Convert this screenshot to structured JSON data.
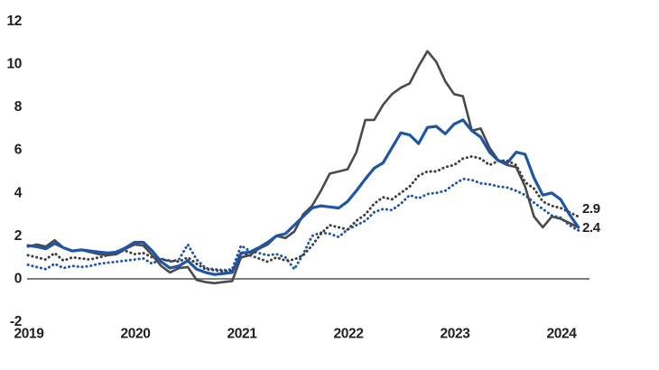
{
  "chart_data": {
    "type": "line",
    "title": "",
    "xlabel": "",
    "ylabel": "",
    "x_unit": "month",
    "x_start": "2019-01",
    "x_end": "2024-03",
    "x_tick_labels": [
      "2019",
      "2020",
      "2021",
      "2022",
      "2023",
      "2024"
    ],
    "y_ticks": [
      -2,
      0,
      2,
      4,
      6,
      8,
      10,
      12
    ],
    "ylim": [
      -2,
      12
    ],
    "grid": false,
    "legend_position": "none",
    "zero_baseline": true,
    "axis_text_color": "#1f1f1f",
    "zero_line_color": "#7d7d7d",
    "series": [
      {
        "name": "dotted-blue",
        "style": "dotted",
        "color": "#1f55a5",
        "values": [
          0.65,
          0.55,
          0.45,
          0.7,
          0.5,
          0.6,
          0.55,
          0.6,
          0.7,
          0.75,
          0.8,
          0.85,
          0.9,
          0.95,
          0.7,
          0.95,
          0.8,
          0.9,
          1.6,
          0.9,
          0.5,
          0.45,
          0.4,
          0.45,
          1.55,
          1.3,
          1.2,
          1.1,
          1.15,
          1.0,
          0.45,
          1.15,
          2.0,
          2.15,
          2.1,
          1.95,
          2.3,
          2.5,
          2.7,
          3.1,
          3.25,
          3.2,
          3.5,
          3.9,
          3.75,
          3.95,
          4.0,
          4.1,
          4.4,
          4.65,
          4.6,
          4.45,
          4.4,
          4.3,
          4.25,
          4.1,
          3.9,
          3.55,
          3.25,
          2.95,
          2.85,
          2.5,
          2.25
        ]
      },
      {
        "name": "dotted-dark-gray",
        "style": "dotted",
        "color": "#3d3d3d",
        "values": [
          1.1,
          1.0,
          0.9,
          1.2,
          0.85,
          1.0,
          0.95,
          0.9,
          1.0,
          1.1,
          1.3,
          1.3,
          1.15,
          1.2,
          1.0,
          0.9,
          0.85,
          0.8,
          1.0,
          0.7,
          0.45,
          0.4,
          0.35,
          0.4,
          1.2,
          1.1,
          0.95,
          0.8,
          1.0,
          0.85,
          0.9,
          1.1,
          1.55,
          2.1,
          2.5,
          2.4,
          2.3,
          2.7,
          3.0,
          3.5,
          3.8,
          3.7,
          4.0,
          4.3,
          4.8,
          5.0,
          5.0,
          5.2,
          5.3,
          5.6,
          5.7,
          5.6,
          5.3,
          5.5,
          5.5,
          5.3,
          4.5,
          4.2,
          3.6,
          3.4,
          3.3,
          3.1,
          2.9
        ]
      },
      {
        "name": "solid-dark-gray",
        "style": "solid",
        "color": "#4a4a4a",
        "values": [
          1.5,
          1.6,
          1.5,
          1.8,
          1.45,
          1.3,
          1.35,
          1.25,
          1.15,
          1.1,
          1.15,
          1.4,
          1.6,
          1.55,
          1.1,
          0.6,
          0.3,
          0.5,
          0.55,
          -0.05,
          -0.15,
          -0.2,
          -0.15,
          -0.1,
          1.0,
          1.1,
          1.4,
          1.6,
          2.0,
          1.9,
          2.2,
          3.0,
          3.4,
          4.1,
          4.9,
          5.0,
          5.1,
          5.9,
          7.4,
          7.4,
          8.1,
          8.6,
          8.9,
          9.1,
          9.9,
          10.6,
          10.1,
          9.2,
          8.6,
          8.5,
          6.9,
          7.0,
          6.1,
          5.5,
          5.3,
          5.2,
          4.3,
          2.9,
          2.4,
          2.9,
          2.8,
          2.6,
          2.4
        ]
      },
      {
        "name": "solid-blue",
        "style": "solid",
        "color": "#1f55a5",
        "values": [
          1.55,
          1.5,
          1.4,
          1.65,
          1.45,
          1.3,
          1.35,
          1.3,
          1.25,
          1.2,
          1.25,
          1.45,
          1.7,
          1.7,
          1.3,
          0.8,
          0.5,
          0.6,
          0.85,
          0.45,
          0.3,
          0.2,
          0.25,
          0.3,
          1.2,
          1.25,
          1.45,
          1.7,
          2.0,
          2.1,
          2.5,
          2.9,
          3.3,
          3.4,
          3.35,
          3.3,
          3.6,
          4.1,
          4.65,
          5.15,
          5.4,
          6.1,
          6.8,
          6.7,
          6.3,
          7.05,
          7.1,
          6.75,
          7.2,
          7.4,
          6.9,
          6.6,
          5.9,
          5.5,
          5.4,
          5.9,
          5.8,
          4.7,
          3.9,
          4.0,
          3.7,
          3.0,
          2.4
        ]
      }
    ],
    "end_labels": [
      {
        "text": "2.9",
        "series": "dotted-dark-gray"
      },
      {
        "text": "2.4",
        "series": "solid-dark-gray"
      }
    ]
  }
}
